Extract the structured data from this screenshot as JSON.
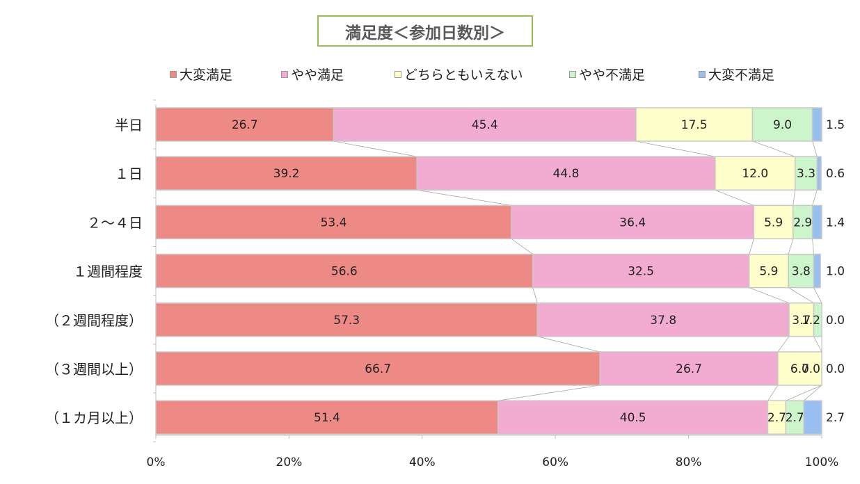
{
  "chart_data": {
    "type": "bar",
    "orientation": "horizontal",
    "stacked": "percent",
    "title": "満足度＜参加日数別＞",
    "categories": [
      "半日",
      "１日",
      "２～４日",
      "１週間程度",
      "（２週間程度）",
      "（３週間以上）",
      "（１カ月以上）"
    ],
    "series": [
      {
        "name": "大変満足",
        "color": "#ee8a85",
        "values": [
          26.7,
          39.2,
          53.4,
          56.6,
          57.3,
          66.7,
          51.4
        ]
      },
      {
        "name": "やや満足",
        "color": "#f2acd2",
        "values": [
          45.4,
          44.8,
          36.4,
          32.5,
          37.8,
          26.7,
          40.5
        ]
      },
      {
        "name": "どちらともいえない",
        "color": "#ffffcc",
        "values": [
          17.5,
          12.0,
          5.9,
          5.9,
          3.7,
          6.7,
          2.7
        ]
      },
      {
        "name": "やや不満足",
        "color": "#ccf5cc",
        "values": [
          9.0,
          3.3,
          2.9,
          3.8,
          1.2,
          0.0,
          2.7
        ]
      },
      {
        "name": "大変不満足",
        "color": "#99bff0",
        "values": [
          1.5,
          0.6,
          1.4,
          1.0,
          0.0,
          0.0,
          2.7
        ]
      }
    ],
    "xlim": [
      0,
      100
    ],
    "x_ticks": [
      "0%",
      "20%",
      "40%",
      "60%",
      "80%",
      "100%"
    ],
    "legend_position": "top",
    "series_lines": true,
    "grid": false
  }
}
